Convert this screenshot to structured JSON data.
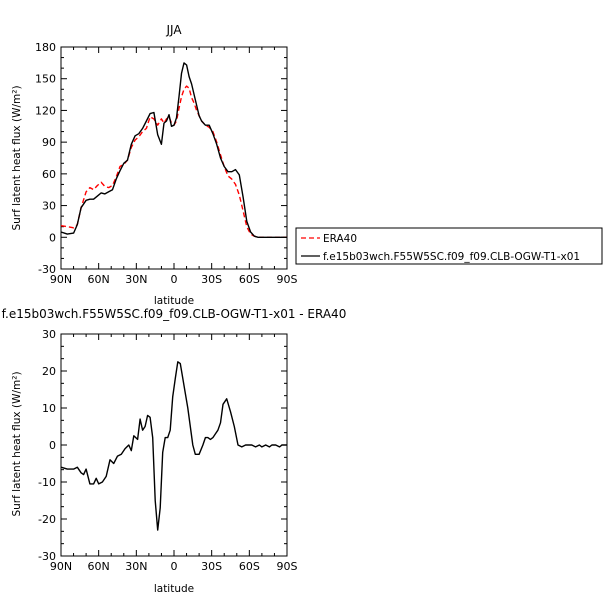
{
  "chart_data": [
    {
      "type": "line",
      "title": "JJA",
      "xlabel": "latitude",
      "ylabel": "Surf latent heat flux (W/m²)",
      "xlim": [
        -90,
        90
      ],
      "ylim": [
        -30,
        180
      ],
      "xticks": [
        -90,
        -60,
        -30,
        0,
        30,
        60,
        90
      ],
      "xtick_labels": [
        "90N",
        "60N",
        "30N",
        "0",
        "30S",
        "60S",
        "90S"
      ],
      "yticks": [
        -30,
        0,
        30,
        60,
        90,
        120,
        150,
        180
      ],
      "ytick_labels": [
        "-30",
        "0",
        "30",
        "60",
        "90",
        "120",
        "150",
        "180"
      ],
      "legend_position": "right",
      "series": [
        {
          "name": "ERA40",
          "color": "#ff0000",
          "dash": true,
          "x": [
            -90,
            -85,
            -80,
            -77,
            -74,
            -70,
            -67,
            -64,
            -61,
            -58,
            -55,
            -52,
            -49,
            -46,
            -43,
            -40,
            -37,
            -34,
            -31,
            -28,
            -25,
            -22,
            -19,
            -16,
            -13,
            -10,
            -8,
            -6,
            -4,
            -2,
            0,
            2,
            4,
            6,
            8,
            10,
            12,
            14,
            16,
            18,
            20,
            22,
            25,
            28,
            31,
            34,
            37,
            40,
            43,
            46,
            49,
            52,
            55,
            58,
            61,
            64,
            67,
            70,
            73,
            76,
            80,
            85,
            90
          ],
          "y": [
            11,
            10,
            9,
            12,
            28,
            43,
            47,
            45,
            49,
            52,
            48,
            47,
            49,
            57,
            67,
            69,
            73,
            85,
            92,
            95,
            100,
            103,
            114,
            112,
            106,
            112,
            108,
            112,
            114,
            108,
            106,
            110,
            122,
            133,
            140,
            143,
            141,
            132,
            127,
            120,
            115,
            110,
            106,
            104,
            100,
            90,
            78,
            67,
            58,
            55,
            50,
            40,
            25,
            10,
            3,
            1,
            0,
            0,
            0,
            0,
            0,
            0,
            0
          ]
        },
        {
          "name": "f.e15b03wch.F55W5SC.f09_f09.CLB-OGW-T1-x01",
          "color": "#000000",
          "dash": false,
          "x": [
            -90,
            -85,
            -80,
            -77,
            -74,
            -70,
            -67,
            -64,
            -61,
            -58,
            -55,
            -52,
            -49,
            -46,
            -43,
            -40,
            -37,
            -34,
            -31,
            -28,
            -25,
            -22,
            -19,
            -16,
            -13,
            -10,
            -8,
            -6,
            -4,
            -2,
            0,
            2,
            4,
            6,
            8,
            10,
            12,
            14,
            16,
            18,
            20,
            22,
            25,
            28,
            31,
            34,
            37,
            40,
            43,
            46,
            49,
            52,
            55,
            58,
            61,
            64,
            67,
            70,
            73,
            76,
            80,
            85,
            90
          ],
          "y": [
            5,
            3,
            4,
            12,
            28,
            35,
            36,
            36,
            39,
            42,
            41,
            43,
            45,
            55,
            63,
            70,
            73,
            88,
            96,
            98,
            103,
            110,
            117,
            118,
            97,
            88,
            108,
            110,
            116,
            105,
            106,
            113,
            133,
            155,
            165,
            163,
            152,
            145,
            135,
            125,
            115,
            110,
            106,
            106,
            98,
            88,
            75,
            67,
            62,
            62,
            64,
            59,
            38,
            15,
            5,
            1,
            0,
            0,
            0,
            0,
            0,
            0,
            0
          ]
        }
      ]
    },
    {
      "type": "line",
      "title": "f.e15b03wch.F55W5SC.f09_f09.CLB-OGW-T1-x01 - ERA40",
      "xlabel": "latitude",
      "ylabel": "Surf latent heat flux (W/m²)",
      "xlim": [
        -90,
        90
      ],
      "ylim": [
        -30,
        30
      ],
      "xticks": [
        -90,
        -60,
        -30,
        0,
        30,
        60,
        90
      ],
      "xtick_labels": [
        "90N",
        "60N",
        "30N",
        "0",
        "30S",
        "60S",
        "90S"
      ],
      "yticks": [
        -30,
        -20,
        -10,
        0,
        10,
        20,
        30
      ],
      "ytick_labels": [
        "-30",
        "-20",
        "-10",
        "0",
        "10",
        "20",
        "30"
      ],
      "series": [
        {
          "color": "#000000",
          "dash": false,
          "x": [
            -90,
            -85,
            -80,
            -77,
            -74,
            -72,
            -70,
            -67,
            -64,
            -62,
            -60,
            -57,
            -54,
            -51,
            -48,
            -45,
            -42,
            -39,
            -36,
            -34,
            -32,
            -29,
            -27,
            -25,
            -23,
            -21,
            -19,
            -17,
            -15,
            -13,
            -11,
            -9,
            -7,
            -5,
            -3,
            -1,
            1,
            3,
            5,
            7,
            9,
            11,
            13,
            15,
            17,
            20,
            23,
            25,
            27,
            29,
            31,
            33,
            35,
            37,
            39,
            42,
            45,
            48,
            51,
            54,
            57,
            59,
            62,
            65,
            68,
            70,
            73,
            76,
            78,
            81,
            84,
            86,
            88,
            90
          ],
          "y": [
            -6,
            -6.5,
            -6.5,
            -6,
            -7.5,
            -8,
            -6.5,
            -10.5,
            -10.5,
            -9,
            -10.5,
            -10,
            -8.5,
            -4,
            -5,
            -3,
            -2.5,
            -1,
            0,
            -1.5,
            2.5,
            1.5,
            7,
            4,
            5,
            8,
            7.5,
            2,
            -15,
            -23,
            -17,
            -2,
            2,
            2,
            4,
            13,
            18,
            22.5,
            22,
            18,
            14,
            10,
            5,
            0,
            -2.5,
            -2.5,
            0,
            2,
            2,
            1.5,
            2,
            3,
            4,
            6,
            11,
            12.5,
            9,
            5,
            0,
            -0.5,
            0,
            0,
            0,
            -0.5,
            0,
            -0.5,
            0,
            -0.5,
            0,
            0,
            -0.5,
            0,
            0,
            0
          ]
        }
      ]
    }
  ]
}
